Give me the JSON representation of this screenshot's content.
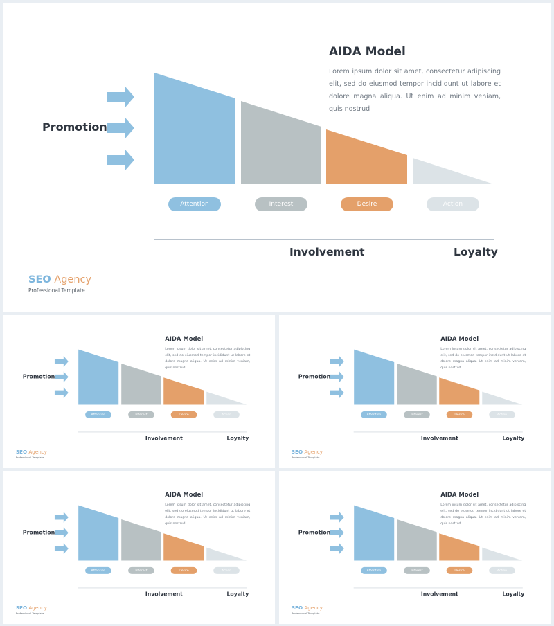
{
  "slide": {
    "title": "AIDA Model",
    "body": "Lorem ipsum dolor sit amet, consectetur adipiscing elit, sed do eiusmod tempor incididunt ut labore et dolore magna aliqua. Ut enim ad minim veniam, quis nostrud",
    "promotion_label": "Promotion",
    "stages": [
      "Attention",
      "Interest",
      "Desire",
      "Action"
    ],
    "axis": {
      "involvement_label": "Involvement",
      "loyalty_label": "Loyalty"
    },
    "brand": {
      "seo": "SEO",
      "agency": "Agency",
      "tagline": "Professional Template"
    }
  },
  "colors": {
    "attention": "#8fc0e0",
    "interest": "#b8c1c3",
    "desire": "#e4a06a",
    "action": "#dce3e7",
    "arrow": "#8fc0e0",
    "title_text": "#2f3640",
    "brand_seo": "#7eb6dd",
    "brand_agency": "#e4a06a"
  },
  "icons": [
    "arrow-right-icon",
    "arrow-right-icon",
    "arrow-right-icon"
  ]
}
